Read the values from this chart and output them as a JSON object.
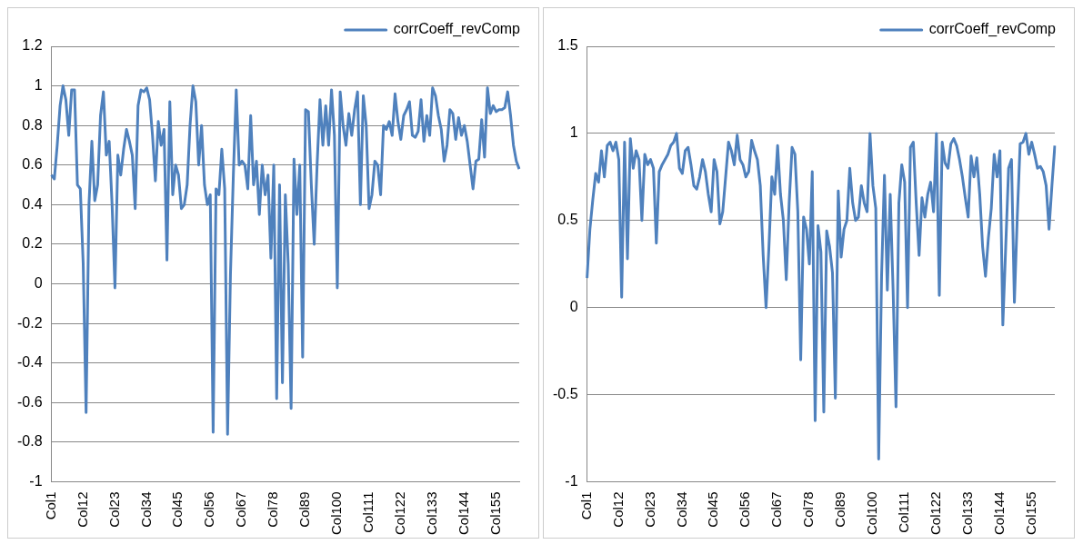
{
  "chart_data": [
    {
      "type": "line",
      "categories": [
        "Col1",
        null,
        null,
        null,
        null,
        null,
        null,
        null,
        null,
        null,
        null,
        "Col12",
        null,
        null,
        null,
        null,
        null,
        null,
        null,
        null,
        null,
        null,
        "Col23",
        null,
        null,
        null,
        null,
        null,
        null,
        null,
        null,
        null,
        null,
        "Col34",
        null,
        null,
        null,
        null,
        null,
        null,
        null,
        null,
        null,
        null,
        "Col45",
        null,
        null,
        null,
        null,
        null,
        null,
        null,
        null,
        null,
        null,
        "Col56",
        null,
        null,
        null,
        null,
        null,
        null,
        null,
        null,
        null,
        null,
        "Col67",
        null,
        null,
        null,
        null,
        null,
        null,
        null,
        null,
        null,
        null,
        "Col78",
        null,
        null,
        null,
        null,
        null,
        null,
        null,
        null,
        null,
        null,
        "Col89",
        null,
        null,
        null,
        null,
        null,
        null,
        null,
        null,
        null,
        null,
        "Col100",
        null,
        null,
        null,
        null,
        null,
        null,
        null,
        null,
        null,
        null,
        "Col111",
        null,
        null,
        null,
        null,
        null,
        null,
        null,
        null,
        null,
        null,
        "Col122",
        null,
        null,
        null,
        null,
        null,
        null,
        null,
        null,
        null,
        null,
        "Col133",
        null,
        null,
        null,
        null,
        null,
        null,
        null,
        null,
        null,
        null,
        "Col144",
        null,
        null,
        null,
        null,
        null,
        null,
        null,
        null,
        null,
        null,
        "Col155",
        null,
        null,
        null,
        null,
        null,
        null,
        null,
        null
      ],
      "series": [
        {
          "name": "corrCoeff_revComp",
          "color": "#4f81bd",
          "values": [
            0.55,
            0.53,
            0.7,
            0.9,
            1.0,
            0.93,
            0.75,
            0.98,
            0.98,
            0.5,
            0.48,
            0.1,
            -0.65,
            0.4,
            0.72,
            0.42,
            0.5,
            0.85,
            0.97,
            0.65,
            0.72,
            0.4,
            -0.02,
            0.65,
            0.55,
            0.68,
            0.78,
            0.72,
            0.65,
            0.38,
            0.9,
            0.98,
            0.97,
            0.99,
            0.93,
            0.75,
            0.52,
            0.82,
            0.7,
            0.78,
            0.12,
            0.92,
            0.45,
            0.6,
            0.55,
            0.38,
            0.4,
            0.5,
            0.8,
            1.0,
            0.92,
            0.6,
            0.8,
            0.5,
            0.4,
            0.45,
            -0.75,
            0.48,
            0.45,
            0.68,
            0.48,
            -0.76,
            0.05,
            0.55,
            0.98,
            0.6,
            0.62,
            0.6,
            0.48,
            0.85,
            0.5,
            0.62,
            0.35,
            0.6,
            0.45,
            0.55,
            0.13,
            0.6,
            -0.58,
            0.5,
            -0.5,
            0.45,
            0.1,
            -0.63,
            0.63,
            0.35,
            0.6,
            -0.37,
            0.88,
            0.87,
            0.5,
            0.2,
            0.6,
            0.93,
            0.7,
            0.9,
            0.7,
            0.98,
            0.75,
            -0.02,
            0.97,
            0.8,
            0.7,
            0.86,
            0.75,
            0.88,
            0.97,
            0.4,
            0.95,
            0.8,
            0.38,
            0.45,
            0.62,
            0.6,
            0.45,
            0.8,
            0.78,
            0.82,
            0.75,
            0.96,
            0.82,
            0.73,
            0.85,
            0.88,
            0.92,
            0.75,
            0.74,
            0.77,
            0.93,
            0.72,
            0.85,
            0.75,
            0.99,
            0.95,
            0.85,
            0.78,
            0.62,
            0.7,
            0.88,
            0.86,
            0.73,
            0.84,
            0.75,
            0.8,
            0.72,
            0.6,
            0.48,
            0.62,
            0.63,
            0.83,
            0.64,
            0.99,
            0.86,
            0.9,
            0.87,
            0.88,
            0.88,
            0.89,
            0.97,
            0.85,
            0.7,
            0.62,
            0.58
          ]
        }
      ],
      "ylim": [
        -1,
        1.2
      ],
      "yticks": [
        -1,
        -0.8,
        -0.6,
        -0.4,
        -0.2,
        0,
        0.2,
        0.4,
        0.6,
        0.8,
        1,
        1.2
      ],
      "grid": "y",
      "legend": "top right",
      "marker": "none",
      "line_style": "solid"
    },
    {
      "type": "line",
      "categories": [
        "Col1",
        null,
        null,
        null,
        null,
        null,
        null,
        null,
        null,
        null,
        null,
        "Col12",
        null,
        null,
        null,
        null,
        null,
        null,
        null,
        null,
        null,
        null,
        "Col23",
        null,
        null,
        null,
        null,
        null,
        null,
        null,
        null,
        null,
        null,
        "Col34",
        null,
        null,
        null,
        null,
        null,
        null,
        null,
        null,
        null,
        null,
        "Col45",
        null,
        null,
        null,
        null,
        null,
        null,
        null,
        null,
        null,
        null,
        "Col56",
        null,
        null,
        null,
        null,
        null,
        null,
        null,
        null,
        null,
        null,
        "Col67",
        null,
        null,
        null,
        null,
        null,
        null,
        null,
        null,
        null,
        null,
        "Col78",
        null,
        null,
        null,
        null,
        null,
        null,
        null,
        null,
        null,
        null,
        "Col89",
        null,
        null,
        null,
        null,
        null,
        null,
        null,
        null,
        null,
        null,
        "Col100",
        null,
        null,
        null,
        null,
        null,
        null,
        null,
        null,
        null,
        null,
        "Col111",
        null,
        null,
        null,
        null,
        null,
        null,
        null,
        null,
        null,
        null,
        "Col122",
        null,
        null,
        null,
        null,
        null,
        null,
        null,
        null,
        null,
        null,
        "Col133",
        null,
        null,
        null,
        null,
        null,
        null,
        null,
        null,
        null,
        null,
        "Col144",
        null,
        null,
        null,
        null,
        null,
        null,
        null,
        null,
        null,
        null,
        "Col155",
        null,
        null,
        null,
        null,
        null,
        null,
        null,
        null
      ],
      "series": [
        {
          "name": "corrCoeff_revComp",
          "color": "#4f81bd",
          "values": [
            0.17,
            0.45,
            0.62,
            0.77,
            0.72,
            0.9,
            0.75,
            0.93,
            0.95,
            0.9,
            0.95,
            0.85,
            0.06,
            0.95,
            0.28,
            0.97,
            0.8,
            0.9,
            0.85,
            0.5,
            0.88,
            0.82,
            0.85,
            0.8,
            0.37,
            0.78,
            0.82,
            0.85,
            0.88,
            0.93,
            0.95,
            1.0,
            0.8,
            0.77,
            0.9,
            0.92,
            0.82,
            0.7,
            0.68,
            0.75,
            0.85,
            0.78,
            0.65,
            0.55,
            0.85,
            0.78,
            0.48,
            0.55,
            0.75,
            0.95,
            0.9,
            0.82,
            0.99,
            0.85,
            0.82,
            0.75,
            0.78,
            0.96,
            0.9,
            0.85,
            0.7,
            0.3,
            0.0,
            0.35,
            0.75,
            0.65,
            0.93,
            0.65,
            0.5,
            0.16,
            0.6,
            0.92,
            0.88,
            0.55,
            -0.3,
            0.52,
            0.45,
            0.25,
            0.78,
            -0.65,
            0.47,
            0.32,
            -0.6,
            0.44,
            0.35,
            0.2,
            -0.52,
            0.67,
            0.29,
            0.45,
            0.5,
            0.8,
            0.6,
            0.5,
            0.52,
            0.7,
            0.6,
            0.55,
            1.0,
            0.7,
            0.57,
            -0.87,
            0.18,
            0.76,
            0.1,
            0.65,
            0.1,
            -0.57,
            0.6,
            0.82,
            0.72,
            0.0,
            0.92,
            0.95,
            0.6,
            0.3,
            0.63,
            0.52,
            0.65,
            0.72,
            0.55,
            1.0,
            0.07,
            0.95,
            0.83,
            0.8,
            0.94,
            0.97,
            0.93,
            0.85,
            0.75,
            0.63,
            0.52,
            0.87,
            0.75,
            0.86,
            0.65,
            0.35,
            0.18,
            0.4,
            0.57,
            0.88,
            0.75,
            0.9,
            -0.1,
            0.35,
            0.8,
            0.85,
            0.03,
            0.52,
            0.94,
            0.95,
            1.0,
            0.88,
            0.95,
            0.88,
            0.8,
            0.81,
            0.78,
            0.7,
            0.45,
            0.7,
            0.93
          ]
        }
      ],
      "ylim": [
        -1,
        1.5
      ],
      "yticks": [
        -1,
        -0.5,
        0,
        0.5,
        1,
        1.5
      ],
      "grid": "y",
      "legend": "top right",
      "marker": "none",
      "line_style": "solid"
    }
  ]
}
